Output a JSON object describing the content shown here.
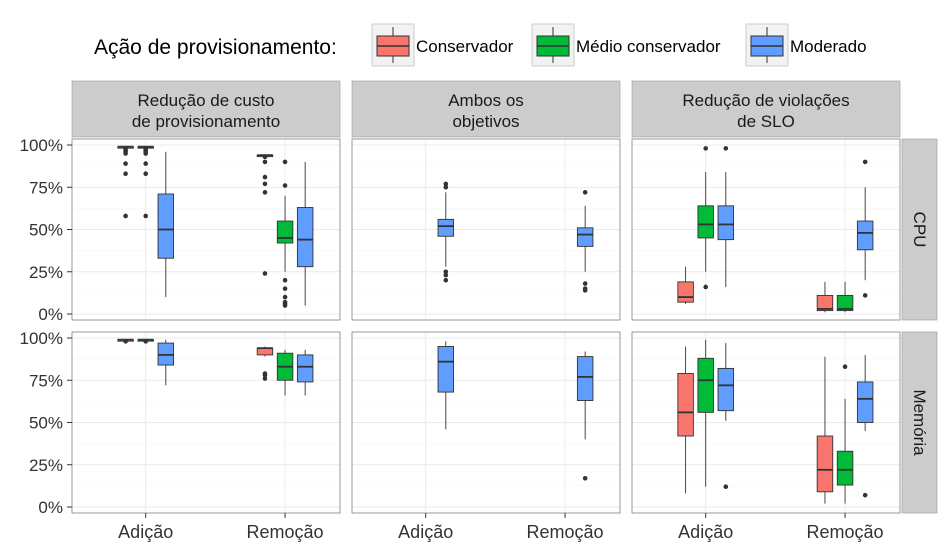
{
  "chart_data": {
    "type": "box",
    "legend": {
      "title": "Ação de provisionamento:",
      "position": "top",
      "items": [
        {
          "label": "Conservador",
          "color": "#F8766D"
        },
        {
          "label": "Médio conservador",
          "color": "#00BA38"
        },
        {
          "label": "Moderado",
          "color": "#619CFF"
        }
      ]
    },
    "column_facets": [
      [
        "Redução de custo",
        "de provisionamento"
      ],
      [
        "Ambos os",
        "objetivos"
      ],
      [
        "Redução de violações",
        "de SLO"
      ]
    ],
    "row_facets": [
      "CPU",
      "Memória"
    ],
    "x_categories": [
      "Adição",
      "Remoção"
    ],
    "y_ticks": [
      "0%",
      "25%",
      "50%",
      "75%",
      "100%"
    ],
    "ylim": [
      0,
      100
    ],
    "panels": [
      {
        "col": 0,
        "row": 0,
        "boxes": [
          {
            "x": 0,
            "series": 0,
            "min": 99,
            "q1": 99,
            "median": 99,
            "q3": 99,
            "max": 99,
            "outliers": [
              98,
              97,
              96,
              95,
              89,
              83,
              58
            ]
          },
          {
            "x": 0,
            "series": 1,
            "min": 99,
            "q1": 99,
            "median": 99,
            "q3": 99,
            "max": 99,
            "outliers": [
              98,
              97,
              96,
              95,
              89,
              83,
              58
            ]
          },
          {
            "x": 0,
            "series": 2,
            "min": 10,
            "q1": 33,
            "median": 50,
            "q3": 71,
            "max": 96,
            "outliers": []
          },
          {
            "x": 1,
            "series": 0,
            "min": 94,
            "q1": 94,
            "median": 94,
            "q3": 94,
            "max": 94,
            "outliers": [
              93,
              90,
              81,
              77,
              72,
              24
            ]
          },
          {
            "x": 1,
            "series": 1,
            "min": 25,
            "q1": 42,
            "median": 45,
            "q3": 55,
            "max": 70,
            "outliers": [
              90,
              76,
              20,
              15,
              10,
              7,
              6,
              5
            ]
          },
          {
            "x": 1,
            "series": 2,
            "min": 5,
            "q1": 28,
            "median": 44,
            "q3": 63,
            "max": 90,
            "outliers": []
          }
        ]
      },
      {
        "col": 1,
        "row": 0,
        "boxes": [
          {
            "x": 0,
            "series": 2,
            "min": 28,
            "q1": 46,
            "median": 52,
            "q3": 56,
            "max": 72,
            "outliers": [
              77,
              75,
              25,
              23,
              20
            ]
          },
          {
            "x": 1,
            "series": 2,
            "min": 25,
            "q1": 40,
            "median": 47,
            "q3": 51,
            "max": 64,
            "outliers": [
              72,
              18,
              15,
              14
            ]
          }
        ]
      },
      {
        "col": 2,
        "row": 0,
        "boxes": [
          {
            "x": 0,
            "series": 0,
            "min": 6,
            "q1": 7,
            "median": 10,
            "q3": 19,
            "max": 28,
            "outliers": []
          },
          {
            "x": 0,
            "series": 1,
            "min": 25,
            "q1": 45,
            "median": 53,
            "q3": 64,
            "max": 84,
            "outliers": [
              98,
              16
            ]
          },
          {
            "x": 0,
            "series": 2,
            "min": 16,
            "q1": 44,
            "median": 53,
            "q3": 64,
            "max": 84,
            "outliers": [
              98
            ]
          },
          {
            "x": 1,
            "series": 0,
            "min": 1,
            "q1": 2,
            "median": 3,
            "q3": 11,
            "max": 19,
            "outliers": []
          },
          {
            "x": 1,
            "series": 1,
            "min": 1,
            "q1": 2,
            "median": 3,
            "q3": 11,
            "max": 19,
            "outliers": []
          },
          {
            "x": 1,
            "series": 2,
            "min": 20,
            "q1": 38,
            "median": 48,
            "q3": 55,
            "max": 75,
            "outliers": [
              90,
              11
            ]
          }
        ]
      },
      {
        "col": 0,
        "row": 1,
        "boxes": [
          {
            "x": 0,
            "series": 0,
            "min": 99,
            "q1": 99,
            "median": 99,
            "q3": 99,
            "max": 99,
            "outliers": [
              98
            ]
          },
          {
            "x": 0,
            "series": 1,
            "min": 99,
            "q1": 99,
            "median": 99,
            "q3": 99,
            "max": 99,
            "outliers": [
              98
            ]
          },
          {
            "x": 0,
            "series": 2,
            "min": 72,
            "q1": 84,
            "median": 90,
            "q3": 97,
            "max": 99,
            "outliers": []
          },
          {
            "x": 1,
            "series": 0,
            "min": 89,
            "q1": 90,
            "median": 94,
            "q3": 94,
            "max": 95,
            "outliers": [
              79,
              78,
              76
            ]
          },
          {
            "x": 1,
            "series": 1,
            "min": 66,
            "q1": 75,
            "median": 83,
            "q3": 91,
            "max": 93,
            "outliers": []
          },
          {
            "x": 1,
            "series": 2,
            "min": 66,
            "q1": 74,
            "median": 83,
            "q3": 90,
            "max": 93,
            "outliers": []
          }
        ]
      },
      {
        "col": 1,
        "row": 1,
        "boxes": [
          {
            "x": 0,
            "series": 2,
            "min": 46,
            "q1": 68,
            "median": 86,
            "q3": 95,
            "max": 98,
            "outliers": []
          },
          {
            "x": 1,
            "series": 2,
            "min": 40,
            "q1": 63,
            "median": 77,
            "q3": 89,
            "max": 92,
            "outliers": [
              17
            ]
          }
        ]
      },
      {
        "col": 2,
        "row": 1,
        "boxes": [
          {
            "x": 0,
            "series": 0,
            "min": 8,
            "q1": 42,
            "median": 56,
            "q3": 79,
            "max": 95,
            "outliers": []
          },
          {
            "x": 0,
            "series": 1,
            "min": 12,
            "q1": 56,
            "median": 75,
            "q3": 88,
            "max": 99,
            "outliers": []
          },
          {
            "x": 0,
            "series": 2,
            "min": 51,
            "q1": 57,
            "median": 72,
            "q3": 82,
            "max": 97,
            "outliers": [
              12
            ]
          },
          {
            "x": 1,
            "series": 0,
            "min": 2,
            "q1": 9,
            "median": 22,
            "q3": 42,
            "max": 89,
            "outliers": []
          },
          {
            "x": 1,
            "series": 1,
            "min": 2,
            "q1": 13,
            "median": 22,
            "q3": 33,
            "max": 64,
            "outliers": [
              83
            ]
          },
          {
            "x": 1,
            "series": 2,
            "min": 45,
            "q1": 50,
            "median": 64,
            "q3": 74,
            "max": 90,
            "outliers": [
              7
            ]
          }
        ]
      }
    ]
  }
}
